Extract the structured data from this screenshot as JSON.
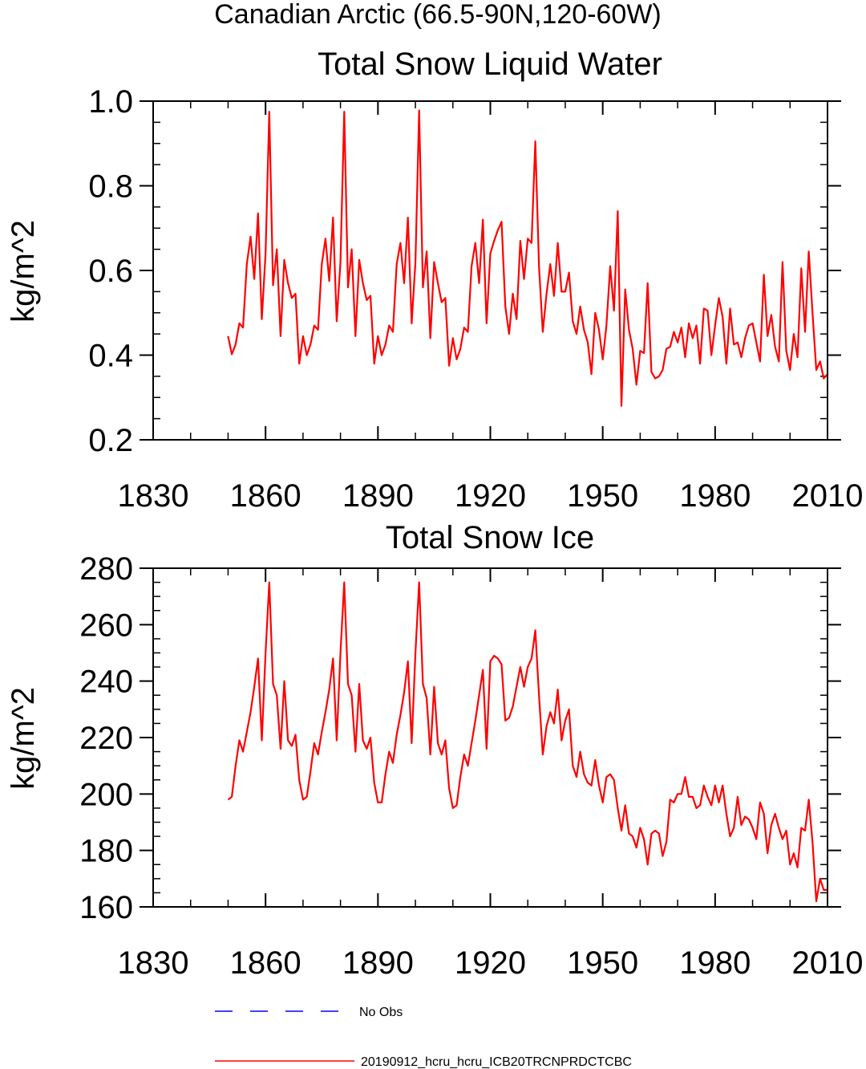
{
  "page_title": "Canadian Arctic (66.5-90N,120-60W)",
  "legend": {
    "position": "bottom",
    "no_obs_label": "No Obs",
    "no_obs_color": "#0000ff",
    "series_label": "20190912_hcru_hcru_ICB20TRCNPRDCTCBC",
    "series_color": "#ff0000"
  },
  "chart_data": [
    {
      "type": "line",
      "title": "Total Snow Liquid Water",
      "xlabel": "",
      "ylabel": "kg/m^2",
      "xlim": [
        1830,
        2010
      ],
      "ylim": [
        0.2,
        1.0
      ],
      "xticks": [
        1830,
        1860,
        1890,
        1920,
        1950,
        1980,
        2010
      ],
      "yticks": [
        0.2,
        0.4,
        0.6,
        0.8,
        1.0
      ],
      "ytick_labels": [
        "0.2",
        "0.4",
        "0.6",
        "0.8",
        "1.0"
      ],
      "grid": false,
      "series": [
        {
          "name": "20190912_hcru_hcru_ICB20TRCNPRDCTCBC",
          "color": "#ff0000",
          "x_start": 1850,
          "x_step": 1,
          "values": [
            0.445,
            0.402,
            0.425,
            0.475,
            0.465,
            0.615,
            0.68,
            0.58,
            0.735,
            0.485,
            0.64,
            0.975,
            0.565,
            0.65,
            0.445,
            0.625,
            0.57,
            0.535,
            0.545,
            0.38,
            0.445,
            0.4,
            0.425,
            0.47,
            0.46,
            0.615,
            0.675,
            0.575,
            0.725,
            0.48,
            0.62,
            0.975,
            0.56,
            0.65,
            0.445,
            0.625,
            0.57,
            0.53,
            0.54,
            0.38,
            0.445,
            0.4,
            0.425,
            0.47,
            0.455,
            0.615,
            0.665,
            0.57,
            0.725,
            0.475,
            0.62,
            0.978,
            0.56,
            0.645,
            0.44,
            0.62,
            0.57,
            0.525,
            0.535,
            0.375,
            0.44,
            0.39,
            0.415,
            0.465,
            0.455,
            0.61,
            0.665,
            0.57,
            0.72,
            0.475,
            0.64,
            0.67,
            0.695,
            0.715,
            0.515,
            0.45,
            0.545,
            0.485,
            0.67,
            0.58,
            0.675,
            0.665,
            0.905,
            0.61,
            0.455,
            0.545,
            0.615,
            0.54,
            0.665,
            0.55,
            0.55,
            0.595,
            0.48,
            0.45,
            0.515,
            0.46,
            0.43,
            0.355,
            0.5,
            0.46,
            0.39,
            0.47,
            0.61,
            0.505,
            0.74,
            0.28,
            0.555,
            0.46,
            0.415,
            0.33,
            0.41,
            0.405,
            0.57,
            0.36,
            0.345,
            0.35,
            0.365,
            0.415,
            0.42,
            0.455,
            0.43,
            0.465,
            0.395,
            0.475,
            0.44,
            0.47,
            0.38,
            0.51,
            0.505,
            0.4,
            0.47,
            0.535,
            0.49,
            0.38,
            0.51,
            0.425,
            0.43,
            0.395,
            0.44,
            0.47,
            0.475,
            0.43,
            0.385,
            0.59,
            0.445,
            0.495,
            0.42,
            0.385,
            0.62,
            0.41,
            0.365,
            0.45,
            0.395,
            0.605,
            0.455,
            0.645,
            0.5,
            0.365,
            0.385,
            0.345,
            0.355
          ]
        }
      ]
    },
    {
      "type": "line",
      "title": "Total Snow Ice",
      "xlabel": "",
      "ylabel": "kg/m^2",
      "xlim": [
        1830,
        2010
      ],
      "ylim": [
        160,
        280
      ],
      "xticks": [
        1830,
        1860,
        1890,
        1920,
        1950,
        1980,
        2010
      ],
      "yticks": [
        160,
        180,
        200,
        220,
        240,
        260,
        280
      ],
      "ytick_labels": [
        "160",
        "180",
        "200",
        "220",
        "240",
        "260",
        "280"
      ],
      "grid": false,
      "series": [
        {
          "name": "20190912_hcru_hcru_ICB20TRCNPRDCTCBC",
          "color": "#ff0000",
          "x_start": 1850,
          "x_step": 1,
          "values": [
            198,
            199,
            210,
            219,
            215,
            222,
            229,
            238,
            248,
            219,
            250,
            275,
            239,
            235,
            216,
            240,
            219,
            217,
            221,
            205,
            198,
            199,
            208,
            218,
            214,
            222,
            229,
            237,
            248,
            219,
            250,
            275,
            239,
            235,
            215,
            239,
            219,
            216,
            220,
            204,
            197,
            197,
            207,
            215,
            211,
            221,
            228,
            236,
            247,
            218,
            250,
            275,
            239,
            234,
            214,
            238,
            218,
            214,
            219,
            202,
            195,
            196,
            206,
            214,
            210,
            218,
            226,
            235,
            244,
            216,
            247,
            249,
            248,
            246,
            226,
            227,
            231,
            238,
            245,
            238,
            245,
            248,
            258,
            235,
            214,
            224,
            229,
            225,
            237,
            219,
            226,
            230,
            210,
            206,
            215,
            207,
            204,
            203,
            212,
            203,
            197,
            206,
            207,
            205,
            195,
            187,
            196,
            186,
            185,
            181,
            188,
            184,
            175,
            186,
            187,
            186,
            178,
            183,
            198,
            197,
            200,
            200,
            206,
            199,
            199,
            195,
            196,
            203,
            199,
            196,
            203,
            197,
            203,
            193,
            185,
            188,
            199,
            189,
            192,
            191,
            188,
            184,
            197,
            193,
            179,
            189,
            193,
            188,
            184,
            187,
            175,
            179,
            174,
            188,
            187,
            198,
            183,
            162,
            170,
            166,
            166
          ]
        }
      ]
    }
  ]
}
